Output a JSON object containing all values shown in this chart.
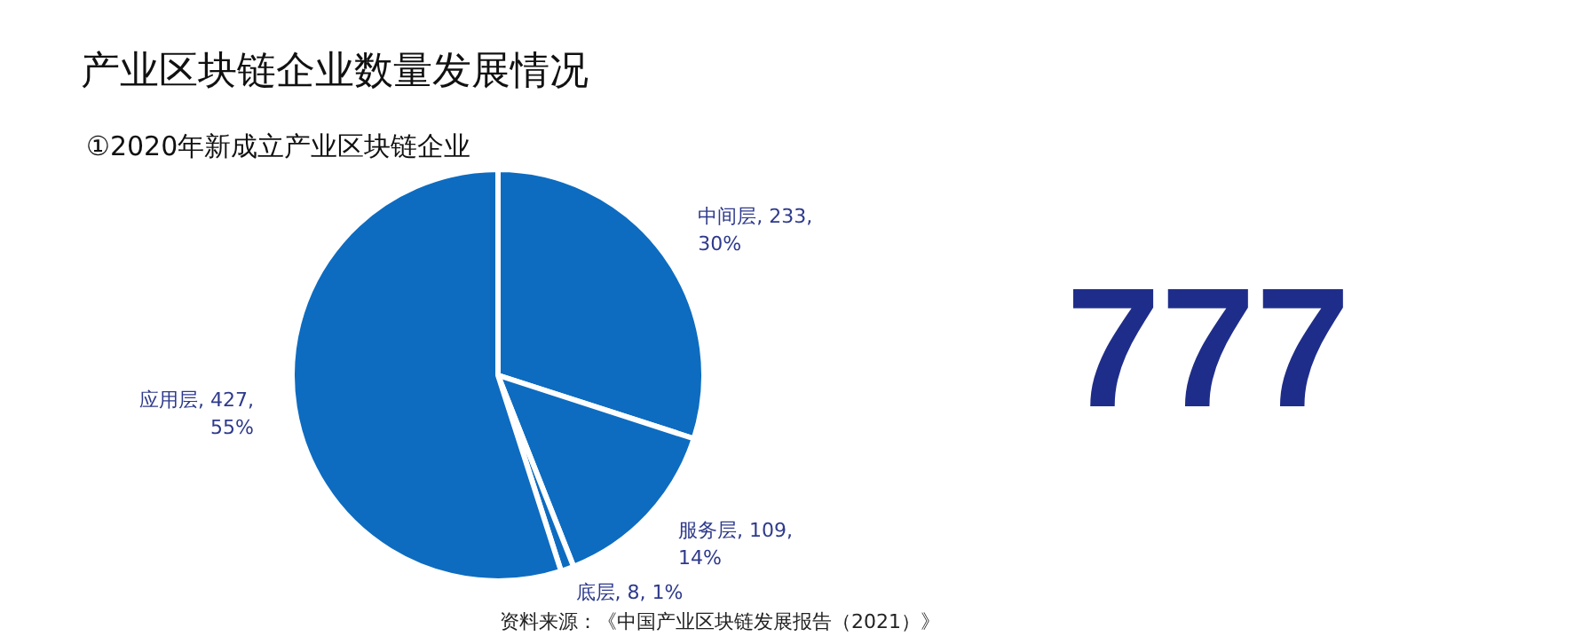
{
  "chart_data": {
    "type": "pie",
    "title": "产业区块链企业数量发展情况",
    "subtitle": "①2020年新成立产业区块链企业",
    "categories": [
      "中间层",
      "服务层",
      "底层",
      "应用层"
    ],
    "values": [
      233,
      109,
      8,
      427
    ],
    "colors": [
      "#0d6cc0",
      "#0d6cc0",
      "#0d6cc0",
      "#0d6cc0"
    ],
    "value_labels": [
      "233,\n30%",
      "109,\n14%",
      "8, 1%",
      "427,\n55%"
    ],
    "annotations": [
      "777",
      "资料来源：《中国产业区块链发展报告（2021）》"
    ]
  }
}
